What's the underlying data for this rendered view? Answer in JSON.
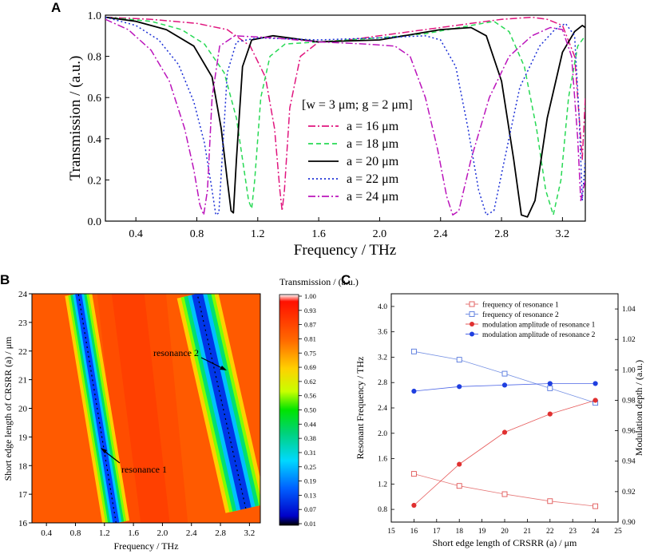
{
  "panels": {
    "a": "A",
    "b": "B",
    "c": "C"
  },
  "chart_data": [
    {
      "type": "line",
      "title": "",
      "xlabel": "Frequency / THz",
      "ylabel": "Transmission / (a.u.)",
      "xlim": [
        0.2,
        3.35
      ],
      "ylim": [
        0.0,
        1.0
      ],
      "xticks": [
        "0.4",
        "0.8",
        "1.2",
        "1.6",
        "2.0",
        "2.4",
        "2.8",
        "3.2"
      ],
      "yticks": [
        "0.0",
        "0.2",
        "0.4",
        "0.6",
        "0.8",
        "1.0"
      ],
      "legend_title": "[w = 3 μm; g = 2 μm]",
      "legend_position": "center",
      "series": [
        {
          "name": "a = 16 μm",
          "color": "#e0157e",
          "dash": "dashdot",
          "points": [
            [
              0.2,
              0.99
            ],
            [
              0.5,
              0.98
            ],
            [
              0.8,
              0.96
            ],
            [
              1.0,
              0.93
            ],
            [
              1.15,
              0.85
            ],
            [
              1.25,
              0.7
            ],
            [
              1.31,
              0.45
            ],
            [
              1.345,
              0.15
            ],
            [
              1.36,
              0.05
            ],
            [
              1.375,
              0.15
            ],
            [
              1.41,
              0.55
            ],
            [
              1.48,
              0.8
            ],
            [
              1.6,
              0.87
            ],
            [
              1.8,
              0.88
            ],
            [
              2.0,
              0.9
            ],
            [
              2.2,
              0.92
            ],
            [
              2.4,
              0.94
            ],
            [
              2.6,
              0.96
            ],
            [
              2.8,
              0.98
            ],
            [
              3.0,
              0.99
            ],
            [
              3.1,
              0.98
            ],
            [
              3.2,
              0.95
            ],
            [
              3.28,
              0.8
            ],
            [
              3.33,
              0.3
            ],
            [
              3.35,
              0.6
            ]
          ]
        },
        {
          "name": "a = 18 μm",
          "color": "#27d954",
          "dash": "dash",
          "points": [
            [
              0.2,
              0.99
            ],
            [
              0.5,
              0.97
            ],
            [
              0.7,
              0.93
            ],
            [
              0.85,
              0.86
            ],
            [
              0.98,
              0.72
            ],
            [
              1.06,
              0.5
            ],
            [
              1.11,
              0.25
            ],
            [
              1.14,
              0.1
            ],
            [
              1.16,
              0.06
            ],
            [
              1.18,
              0.2
            ],
            [
              1.22,
              0.6
            ],
            [
              1.28,
              0.8
            ],
            [
              1.38,
              0.86
            ],
            [
              1.6,
              0.87
            ],
            [
              2.0,
              0.89
            ],
            [
              2.3,
              0.91
            ],
            [
              2.6,
              0.95
            ],
            [
              2.75,
              0.97
            ],
            [
              2.85,
              0.92
            ],
            [
              2.95,
              0.75
            ],
            [
              3.03,
              0.45
            ],
            [
              3.09,
              0.15
            ],
            [
              3.14,
              0.03
            ],
            [
              3.19,
              0.2
            ],
            [
              3.24,
              0.6
            ],
            [
              3.3,
              0.85
            ],
            [
              3.35,
              0.9
            ]
          ]
        },
        {
          "name": "a = 20 μm",
          "color": "#000000",
          "dash": "solid",
          "points": [
            [
              0.2,
              0.99
            ],
            [
              0.4,
              0.97
            ],
            [
              0.6,
              0.93
            ],
            [
              0.78,
              0.85
            ],
            [
              0.9,
              0.7
            ],
            [
              0.96,
              0.45
            ],
            [
              1.0,
              0.2
            ],
            [
              1.025,
              0.05
            ],
            [
              1.04,
              0.04
            ],
            [
              1.06,
              0.3
            ],
            [
              1.1,
              0.75
            ],
            [
              1.16,
              0.88
            ],
            [
              1.3,
              0.9
            ],
            [
              1.6,
              0.87
            ],
            [
              2.0,
              0.88
            ],
            [
              2.4,
              0.93
            ],
            [
              2.6,
              0.94
            ],
            [
              2.7,
              0.9
            ],
            [
              2.8,
              0.68
            ],
            [
              2.88,
              0.3
            ],
            [
              2.93,
              0.03
            ],
            [
              2.97,
              0.02
            ],
            [
              3.02,
              0.1
            ],
            [
              3.1,
              0.5
            ],
            [
              3.2,
              0.82
            ],
            [
              3.28,
              0.92
            ],
            [
              3.33,
              0.95
            ],
            [
              3.35,
              0.94
            ]
          ]
        },
        {
          "name": "a = 22 μm",
          "color": "#1b2fd6",
          "dash": "dot",
          "points": [
            [
              0.2,
              0.99
            ],
            [
              0.4,
              0.95
            ],
            [
              0.55,
              0.88
            ],
            [
              0.68,
              0.76
            ],
            [
              0.78,
              0.58
            ],
            [
              0.85,
              0.38
            ],
            [
              0.9,
              0.15
            ],
            [
              0.925,
              0.03
            ],
            [
              0.945,
              0.04
            ],
            [
              0.97,
              0.35
            ],
            [
              1.0,
              0.72
            ],
            [
              1.06,
              0.87
            ],
            [
              1.2,
              0.89
            ],
            [
              1.6,
              0.88
            ],
            [
              2.0,
              0.89
            ],
            [
              2.3,
              0.9
            ],
            [
              2.4,
              0.88
            ],
            [
              2.5,
              0.75
            ],
            [
              2.58,
              0.45
            ],
            [
              2.65,
              0.15
            ],
            [
              2.7,
              0.03
            ],
            [
              2.75,
              0.05
            ],
            [
              2.82,
              0.3
            ],
            [
              2.92,
              0.65
            ],
            [
              3.05,
              0.85
            ],
            [
              3.15,
              0.93
            ],
            [
              3.22,
              0.96
            ],
            [
              3.28,
              0.9
            ],
            [
              3.31,
              0.5
            ],
            [
              3.33,
              0.1
            ],
            [
              3.35,
              0.3
            ]
          ]
        },
        {
          "name": "a = 24 μm",
          "color": "#bb14bb",
          "dash": "dashdot",
          "points": [
            [
              0.2,
              0.98
            ],
            [
              0.35,
              0.93
            ],
            [
              0.5,
              0.83
            ],
            [
              0.62,
              0.68
            ],
            [
              0.72,
              0.45
            ],
            [
              0.78,
              0.25
            ],
            [
              0.82,
              0.08
            ],
            [
              0.845,
              0.03
            ],
            [
              0.87,
              0.15
            ],
            [
              0.9,
              0.6
            ],
            [
              0.95,
              0.85
            ],
            [
              1.05,
              0.9
            ],
            [
              1.3,
              0.89
            ],
            [
              1.6,
              0.87
            ],
            [
              1.9,
              0.86
            ],
            [
              2.1,
              0.85
            ],
            [
              2.2,
              0.8
            ],
            [
              2.3,
              0.6
            ],
            [
              2.38,
              0.35
            ],
            [
              2.44,
              0.12
            ],
            [
              2.48,
              0.03
            ],
            [
              2.52,
              0.05
            ],
            [
              2.6,
              0.3
            ],
            [
              2.72,
              0.6
            ],
            [
              2.85,
              0.8
            ],
            [
              3.0,
              0.9
            ],
            [
              3.12,
              0.94
            ],
            [
              3.2,
              0.93
            ],
            [
              3.26,
              0.8
            ],
            [
              3.3,
              0.4
            ],
            [
              3.32,
              0.1
            ],
            [
              3.35,
              0.2
            ]
          ]
        }
      ]
    },
    {
      "type": "heatmap",
      "xlabel": "Frequency / THz",
      "ylabel": "Short edge length of CRSRR (a) / μm",
      "xlim": [
        0.2,
        3.35
      ],
      "ylim": [
        16,
        24
      ],
      "xticks": [
        "0.4",
        "0.8",
        "1.2",
        "1.6",
        "2.0",
        "2.4",
        "2.8",
        "3.2"
      ],
      "yticks": [
        "16",
        "17",
        "18",
        "19",
        "20",
        "21",
        "22",
        "23",
        "24"
      ],
      "colorbar_title": "Transmission / (a.u.)",
      "colorbar_ticks": [
        "1.00",
        "0.93",
        "0.87",
        "0.81",
        "0.75",
        "0.69",
        "0.62",
        "0.56",
        "0.50",
        "0.44",
        "0.38",
        "0.31",
        "0.25",
        "0.19",
        "0.13",
        "0.07",
        "0.01"
      ],
      "resonance_1_track": [
        [
          1.36,
          16
        ],
        [
          0.84,
          24
        ]
      ],
      "resonance_2_track": [
        [
          3.15,
          16.5
        ],
        [
          2.48,
          24
        ]
      ],
      "annotations": [
        "resonance 1",
        "resonance 2"
      ]
    },
    {
      "type": "scatter",
      "xlabel": "Short edge length of CRSRR (a) / μm",
      "ylabel": "Resonant Frequency / THz",
      "y2label": "Modulation depth / (a.u.)",
      "xlim": [
        15,
        25
      ],
      "ylim": [
        0.6,
        4.2
      ],
      "y2lim": [
        0.9,
        1.05
      ],
      "xticks": [
        "15",
        "16",
        "17",
        "18",
        "19",
        "20",
        "21",
        "22",
        "23",
        "24",
        "25"
      ],
      "yticks": [
        "0.8",
        "1.2",
        "1.6",
        "2.0",
        "2.4",
        "2.8",
        "3.2",
        "3.6",
        "4.0"
      ],
      "y2ticks": [
        "0.90",
        "0.92",
        "0.94",
        "0.96",
        "0.98",
        "1.00",
        "1.02",
        "1.04"
      ],
      "x": [
        16,
        18,
        20,
        22,
        24
      ],
      "series": [
        {
          "name": "frequency of resonance 1",
          "axis": "left",
          "marker": "open-square",
          "color": "#e05555",
          "values": [
            1.36,
            1.17,
            1.04,
            0.93,
            0.85
          ]
        },
        {
          "name": "frequency of resonance 2",
          "axis": "left",
          "marker": "open-square",
          "color": "#5577dd",
          "values": [
            3.29,
            3.16,
            2.94,
            2.71,
            2.48
          ]
        },
        {
          "name": "modulation amplitude of resonance 1",
          "axis": "right",
          "marker": "filled-circle",
          "color": "#e03030",
          "values": [
            0.911,
            0.938,
            0.959,
            0.971,
            0.98
          ]
        },
        {
          "name": "modulation amplitude of resonance 2",
          "axis": "right",
          "marker": "filled-circle",
          "color": "#1f3fe0",
          "values": [
            0.986,
            0.989,
            0.99,
            0.991,
            0.991
          ]
        }
      ]
    }
  ]
}
